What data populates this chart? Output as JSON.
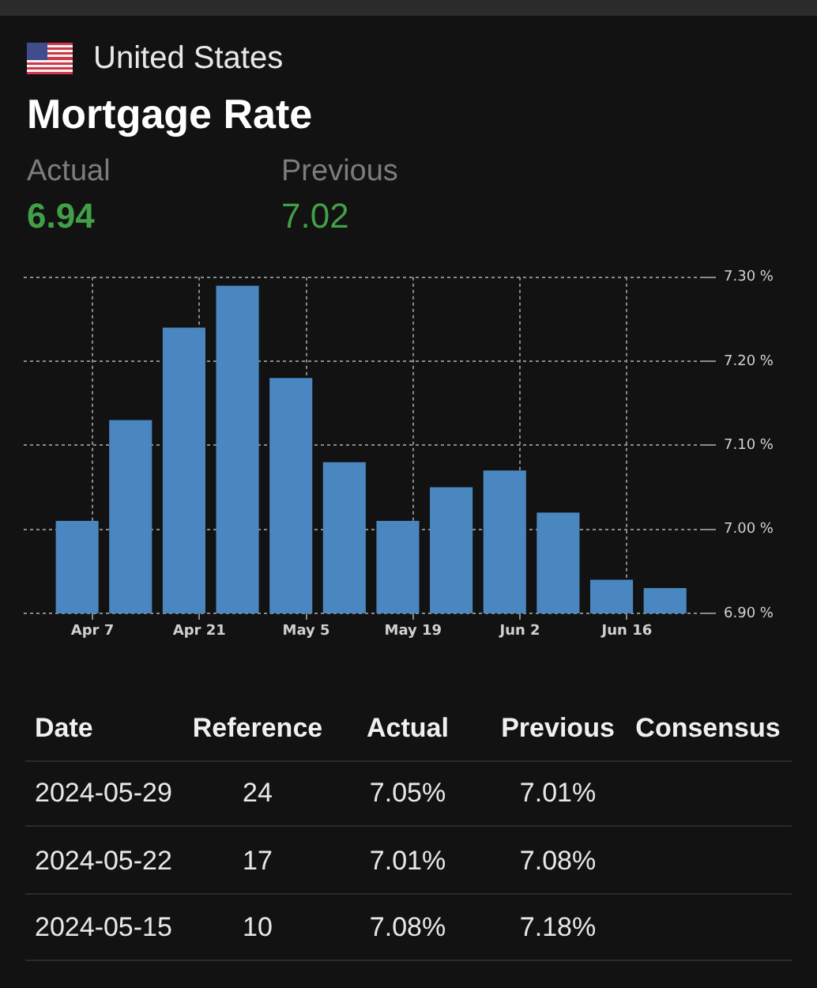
{
  "chart_data": {
    "type": "bar",
    "title": "Mortgage Rate",
    "subtitle": "United States",
    "x": [
      "2024-04-05",
      "2024-04-12",
      "2024-04-19",
      "2024-04-26",
      "2024-05-03",
      "2024-05-10",
      "2024-05-17",
      "2024-05-24",
      "2024-05-31",
      "2024-06-07",
      "2024-06-14",
      "2024-06-21"
    ],
    "values": [
      7.01,
      7.13,
      7.24,
      7.29,
      7.18,
      7.08,
      7.01,
      7.05,
      7.07,
      7.02,
      6.94,
      6.93
    ],
    "color": "#4a87c1",
    "xlim": [
      "2024-03-29",
      "2024-06-26"
    ],
    "xticks": [
      {
        "value": "2024-04-07",
        "label": "Apr 7"
      },
      {
        "value": "2024-04-21",
        "label": "Apr 21"
      },
      {
        "value": "2024-05-05",
        "label": "May 5"
      },
      {
        "value": "2024-05-19",
        "label": "May 19"
      },
      {
        "value": "2024-06-02",
        "label": "Jun 2"
      },
      {
        "value": "2024-06-16",
        "label": "Jun 16"
      }
    ],
    "ylim": [
      6.9,
      7.3
    ],
    "yticks": [
      {
        "value": 6.9,
        "label": "6.90 %"
      },
      {
        "value": 7.0,
        "label": "7.00 %"
      },
      {
        "value": 7.1,
        "label": "7.10 %"
      },
      {
        "value": 7.2,
        "label": "7.20 %"
      },
      {
        "value": 7.3,
        "label": "7.30 %"
      }
    ],
    "grid": true,
    "annotations": [
      "Actual",
      "6.94",
      "Previous",
      "7.02",
      "Date",
      "Reference",
      "Actual",
      "Previous",
      "Consensus",
      "2024-05-29",
      "24",
      "7.05%",
      "7.01%",
      "2024-05-22",
      "17",
      "7.01%",
      "7.08%",
      "2024-05-15",
      "10",
      "7.08%",
      "7.18%"
    ]
  }
}
